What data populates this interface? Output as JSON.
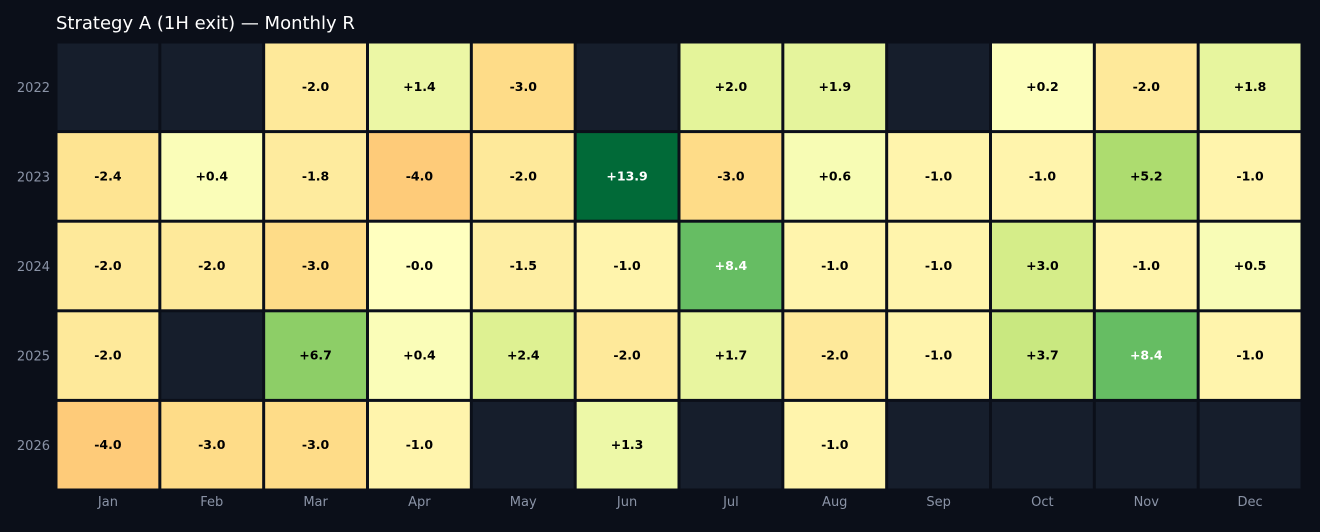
{
  "chart_data": {
    "type": "heatmap",
    "title": "Strategy A (1H exit) — Monthly R",
    "xlabel": "",
    "ylabel": "",
    "columns": [
      "Jan",
      "Feb",
      "Mar",
      "Apr",
      "May",
      "Jun",
      "Jul",
      "Aug",
      "Sep",
      "Oct",
      "Nov",
      "Dec"
    ],
    "rows": [
      "2022",
      "2023",
      "2024",
      "2025",
      "2026"
    ],
    "values": [
      [
        null,
        null,
        -2.0,
        1.4,
        -3.0,
        null,
        2.0,
        1.9,
        null,
        0.2,
        -2.0,
        1.8
      ],
      [
        -2.4,
        0.4,
        -1.8,
        -4.0,
        -2.0,
        13.9,
        -3.0,
        0.6,
        -1.0,
        -1.0,
        5.2,
        -1.0
      ],
      [
        -2.0,
        -2.0,
        -3.0,
        -0.0,
        -1.5,
        -1.0,
        8.4,
        -1.0,
        -1.0,
        3.0,
        -1.0,
        0.5
      ],
      [
        -2.0,
        null,
        6.7,
        0.4,
        2.4,
        -2.0,
        1.7,
        -2.0,
        -1.0,
        3.7,
        8.4,
        -1.0
      ],
      [
        -4.0,
        -3.0,
        -3.0,
        -1.0,
        null,
        1.3,
        null,
        -1.0,
        null,
        null,
        null,
        null
      ]
    ],
    "cell_labels": [
      [
        null,
        null,
        "-2.0",
        "+1.4",
        "-3.0",
        null,
        "+2.0",
        "+1.9",
        null,
        "+0.2",
        "-2.0",
        "+1.8"
      ],
      [
        "-2.4",
        "+0.4",
        "-1.8",
        "-4.0",
        "-2.0",
        "+13.9",
        "-3.0",
        "+0.6",
        "-1.0",
        "-1.0",
        "+5.2",
        "-1.0"
      ],
      [
        "-2.0",
        "-2.0",
        "-3.0",
        "-0.0",
        "-1.5",
        "-1.0",
        "+8.4",
        "-1.0",
        "-1.0",
        "+3.0",
        "-1.0",
        "+0.5"
      ],
      [
        "-2.0",
        null,
        "+6.7",
        "+0.4",
        "+2.4",
        "-2.0",
        "+1.7",
        "-2.0",
        "-1.0",
        "+3.7",
        "+8.4",
        "-1.0"
      ],
      [
        "-4.0",
        "-3.0",
        "-3.0",
        "-1.0",
        null,
        "+1.3",
        null,
        "-1.0",
        null,
        null,
        null,
        null
      ]
    ],
    "colorscale": "RdYlGn",
    "color_range": [
      -14,
      14
    ],
    "colors": {
      "background": "#0b0f19",
      "empty_cell": "#161e2c",
      "cell_border": "#0b0f19",
      "tick_text": "#8a93a6",
      "title_text": "#ffffff",
      "label_dark": "#000000",
      "label_light": "#ffffff"
    }
  }
}
